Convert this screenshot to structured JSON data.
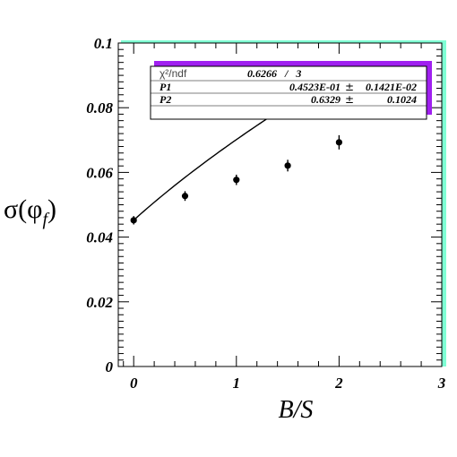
{
  "chart_data": {
    "type": "scatter",
    "xlabel": "B/S",
    "ylabel": "σ(φ_f)",
    "ylabel_parts": {
      "main": "σ(φ",
      "sub": "f",
      "close": ")"
    },
    "xlim": [
      -0.15,
      3.0
    ],
    "ylim": [
      0,
      0.1
    ],
    "xticks": [
      0,
      1,
      2,
      3
    ],
    "xtick_labels": [
      "0",
      "1",
      "2",
      "3"
    ],
    "yticks": [
      0,
      0.02,
      0.04,
      0.06,
      0.08,
      0.1
    ],
    "ytick_labels": [
      "0",
      "0.02",
      "0.04",
      "0.06",
      "0.08",
      "0.1"
    ],
    "points": [
      {
        "x": 0.0,
        "y": 0.0452,
        "err": 0.0013
      },
      {
        "x": 0.5,
        "y": 0.0527,
        "err": 0.0015
      },
      {
        "x": 1.0,
        "y": 0.0577,
        "err": 0.0016
      },
      {
        "x": 1.5,
        "y": 0.0621,
        "err": 0.0018
      },
      {
        "x": 2.0,
        "y": 0.0693,
        "err": 0.0022
      }
    ],
    "fit": {
      "function": "P1*(1+x)^P2",
      "x_range": [
        0,
        2
      ],
      "p1": 0.04523,
      "p2": 0.6329
    },
    "stats_box": {
      "chi2_label": "χ²/ndf",
      "chi2_value": "0.6266   /   3",
      "rows": [
        {
          "name": "P1",
          "value": "0.4523E-01",
          "pm": "±",
          "error": "0.1421E-02"
        },
        {
          "name": "P2",
          "value": "0.6329",
          "pm": "±",
          "error": "0.1024"
        }
      ]
    },
    "grid": false,
    "colors": {
      "frame_shadow": "#7fffd4",
      "stats_shadow": "#a020f0",
      "markers": "#000000"
    }
  }
}
